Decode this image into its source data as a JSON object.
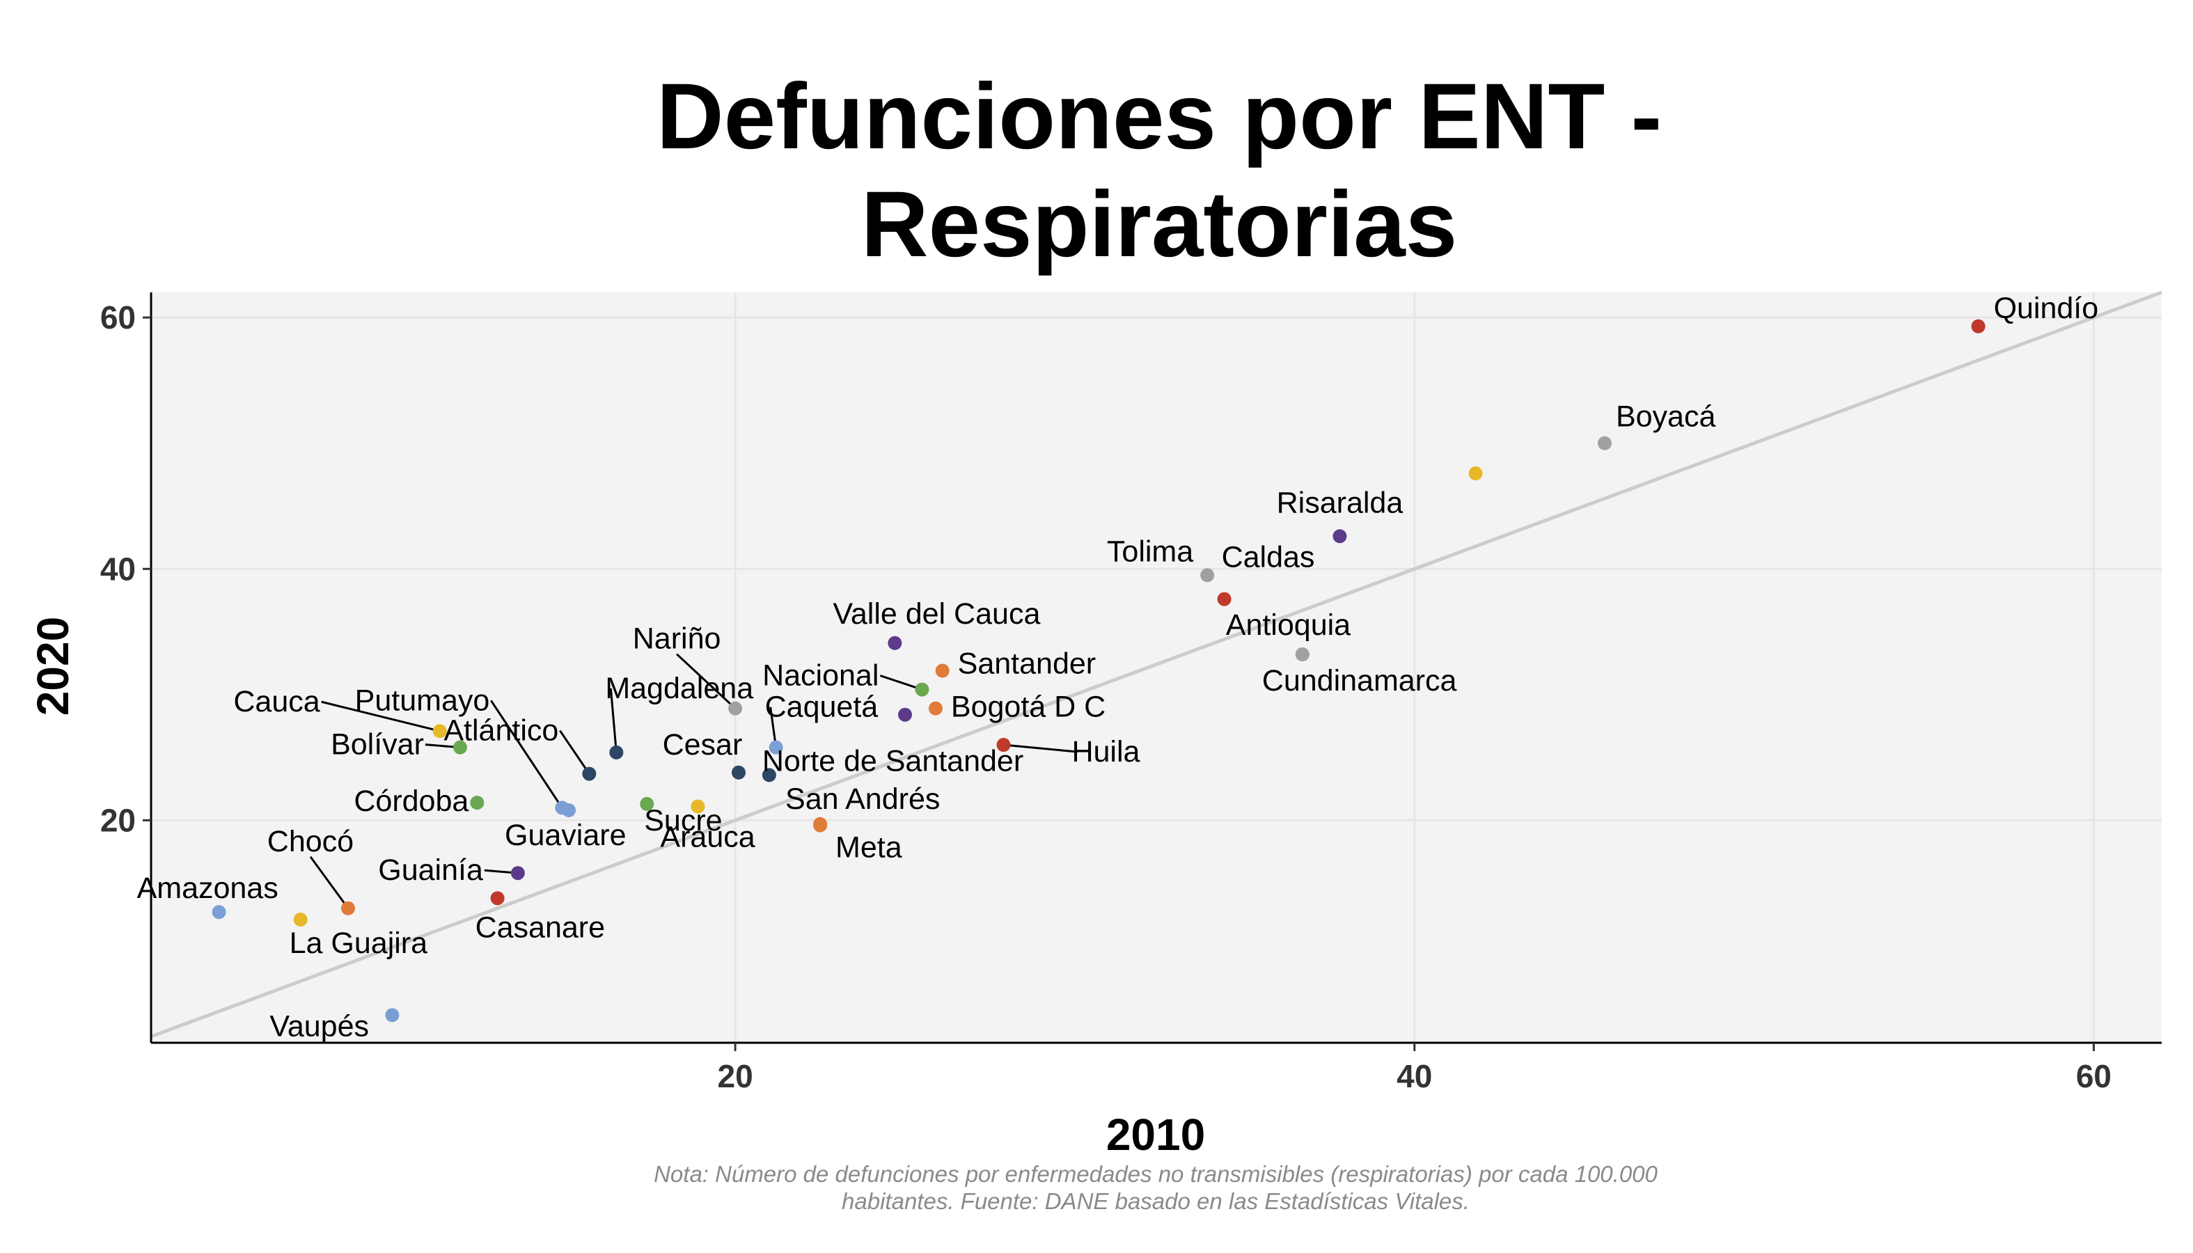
{
  "chart_data": {
    "type": "scatter",
    "title": [
      "Defunciones por ENT -",
      "Respiratorias"
    ],
    "xlabel": "2010",
    "ylabel": "2020",
    "xlim": [
      2.8,
      62
    ],
    "ylim": [
      2.3,
      62
    ],
    "x_ticks": [
      20,
      40,
      60
    ],
    "y_ticks": [
      20,
      40,
      60
    ],
    "grid": true,
    "reference_line": "y = x",
    "note": [
      "Nota: Número de defunciones por enfermedades no transmisibles (respiratorias) por cada 100.000",
      "habitantes. Fuente: DANE basado en las Estadísticas Vitales."
    ],
    "colors": {
      "panel": "#f3f3f3",
      "grid": "#e6e6e6",
      "reference_line": "#cccccc",
      "red": "#c0392b",
      "grey": "#a0a0a0",
      "purple": "#5c3b8c",
      "orange": "#e07b39",
      "green": "#6aa84f",
      "navy": "#2c4664",
      "yellow": "#e6b829",
      "blue": "#7b9fd4"
    },
    "points": [
      {
        "name": "Quindío",
        "x": 56.6,
        "y": 59.3,
        "color": "red"
      },
      {
        "name": "Boyacá",
        "x": 45.6,
        "y": 50.0,
        "color": "grey"
      },
      {
        "name": "",
        "x": 41.8,
        "y": 47.6,
        "color": "yellow"
      },
      {
        "name": "Risaralda",
        "x": 37.8,
        "y": 42.6,
        "color": "purple"
      },
      {
        "name": "Tolima",
        "x": 33.9,
        "y": 39.5,
        "color": "grey"
      },
      {
        "name": "Caldas",
        "x": 34.4,
        "y": 37.6,
        "color": "red"
      },
      {
        "name": "Antioquia",
        "x": 36.7,
        "y": 33.2,
        "color": "grey"
      },
      {
        "name": "Cundinamarca",
        "x": 36.7,
        "y": 33.2,
        "color": "grey"
      },
      {
        "name": "Valle del Cauca",
        "x": 24.7,
        "y": 34.1,
        "color": "purple"
      },
      {
        "name": "Santander",
        "x": 26.1,
        "y": 31.9,
        "color": "orange"
      },
      {
        "name": "Nacional",
        "x": 25.5,
        "y": 30.4,
        "color": "green"
      },
      {
        "name": "Bogotá D C",
        "x": 25.9,
        "y": 28.9,
        "color": "orange"
      },
      {
        "name": "",
        "x": 25.0,
        "y": 28.4,
        "color": "purple"
      },
      {
        "name": "Huila",
        "x": 27.9,
        "y": 26.0,
        "color": "red"
      },
      {
        "name": "Nariño",
        "x": 20.0,
        "y": 28.9,
        "color": "grey"
      },
      {
        "name": "Caquetá",
        "x": 21.2,
        "y": 25.8,
        "color": "blue"
      },
      {
        "name": "Norte de Santander",
        "x": 21.0,
        "y": 23.6,
        "color": "navy"
      },
      {
        "name": "Cesar",
        "x": 20.1,
        "y": 23.8,
        "color": "navy"
      },
      {
        "name": "San Andrés",
        "x": 22.5,
        "y": 19.7,
        "color": "orange"
      },
      {
        "name": "Meta",
        "x": 22.5,
        "y": 19.6,
        "color": "orange"
      },
      {
        "name": "Magdalena",
        "x": 16.5,
        "y": 25.4,
        "color": "navy"
      },
      {
        "name": "Atlántico",
        "x": 15.7,
        "y": 23.7,
        "color": "navy"
      },
      {
        "name": "Sucre",
        "x": 17.4,
        "y": 21.3,
        "color": "green"
      },
      {
        "name": "Arauca",
        "x": 18.9,
        "y": 21.1,
        "color": "yellow"
      },
      {
        "name": "Putumayo",
        "x": 14.9,
        "y": 21.0,
        "color": "blue"
      },
      {
        "name": "Guaviare",
        "x": 15.1,
        "y": 20.8,
        "color": "blue"
      },
      {
        "name": "Cauca",
        "x": 11.3,
        "y": 27.1,
        "color": "yellow"
      },
      {
        "name": "Bolívar",
        "x": 11.9,
        "y": 25.8,
        "color": "green"
      },
      {
        "name": "Córdoba",
        "x": 12.4,
        "y": 21.4,
        "color": "green"
      },
      {
        "name": "Guainía",
        "x": 13.6,
        "y": 15.8,
        "color": "purple"
      },
      {
        "name": "Casanare",
        "x": 13.0,
        "y": 13.8,
        "color": "red"
      },
      {
        "name": "Chocó",
        "x": 8.6,
        "y": 13.0,
        "color": "orange"
      },
      {
        "name": "Amazonas",
        "x": 4.8,
        "y": 12.7,
        "color": "blue"
      },
      {
        "name": "La Guajira",
        "x": 7.2,
        "y": 12.1,
        "color": "yellow"
      },
      {
        "name": "Vaupés",
        "x": 9.9,
        "y": 4.5,
        "color": "blue"
      }
    ]
  }
}
